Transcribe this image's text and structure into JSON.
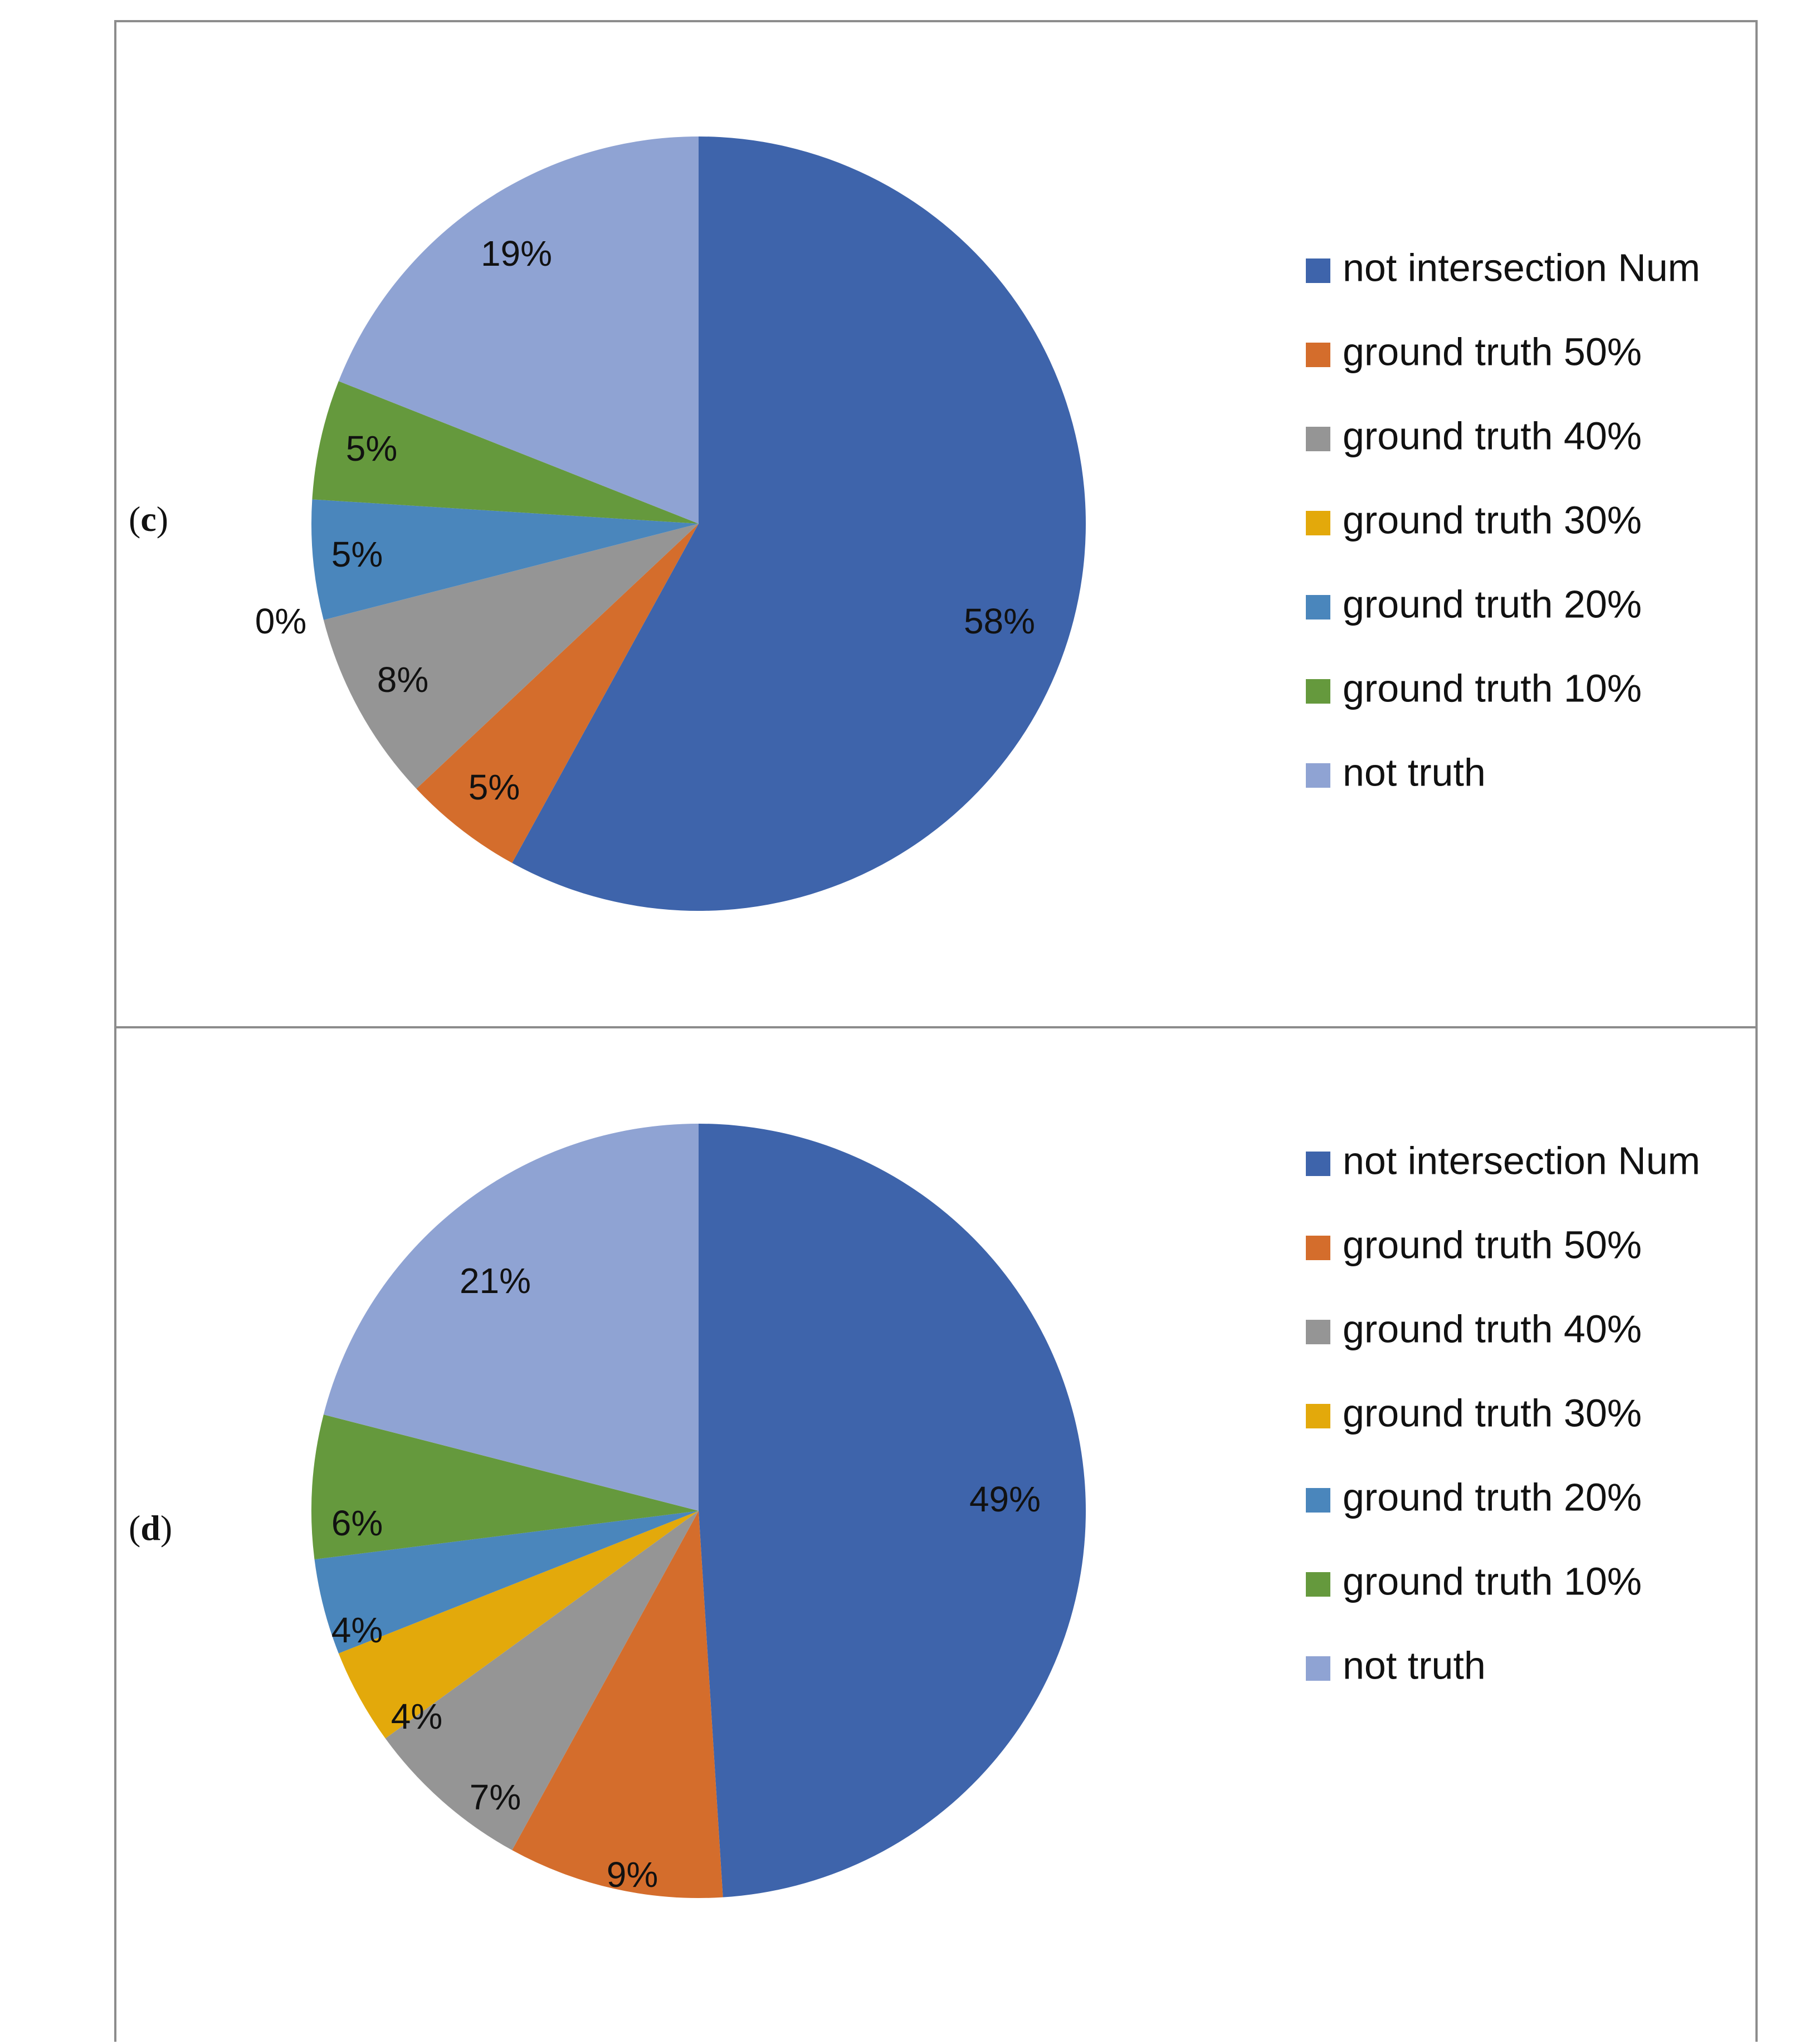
{
  "chart_data": [
    {
      "type": "pie",
      "panel_label": "c",
      "categories": [
        "not intersection Num",
        "ground truth 50%",
        "ground truth 40%",
        "ground truth 30%",
        "ground truth 20%",
        "ground truth 10%",
        "not truth"
      ],
      "values": [
        58,
        5,
        8,
        0,
        5,
        5,
        19
      ],
      "data_labels": [
        "58%",
        "5%",
        "8%",
        "0%",
        "5%",
        "5%",
        "19%"
      ],
      "colors": [
        "#3e64ab",
        "#d46d2c",
        "#959595",
        "#e3a90b",
        "#4a86bc",
        "#65993d",
        "#8fa3d3"
      ],
      "legend_position": "right"
    },
    {
      "type": "pie",
      "panel_label": "d",
      "categories": [
        "not intersection Num",
        "ground truth 50%",
        "ground truth 40%",
        "ground truth 30%",
        "ground truth 20%",
        "ground truth 10%",
        "not truth"
      ],
      "values": [
        49,
        9,
        7,
        4,
        4,
        6,
        21
      ],
      "data_labels": [
        "49%",
        "9%",
        "7%",
        "4%",
        "4%",
        "6%",
        "21%"
      ],
      "colors": [
        "#3e64ab",
        "#d46d2c",
        "#959595",
        "#e3a90b",
        "#4a86bc",
        "#65993d",
        "#8fa3d3"
      ],
      "legend_position": "right"
    }
  ]
}
